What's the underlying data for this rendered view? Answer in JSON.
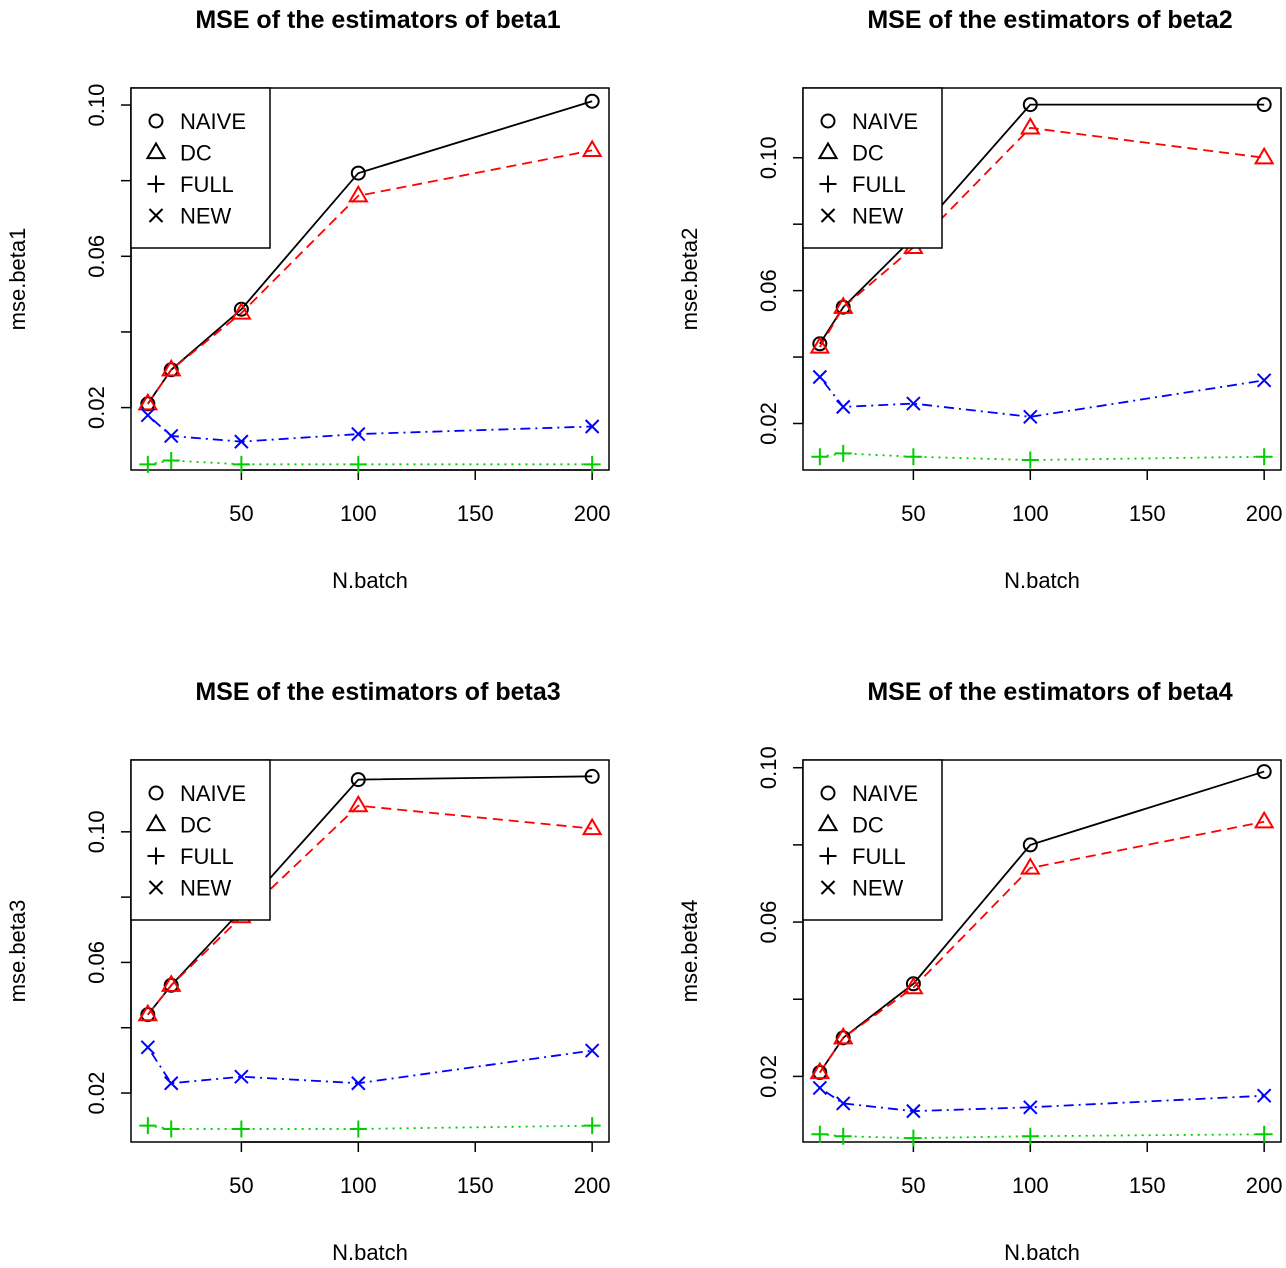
{
  "chart_data": [
    {
      "type": "line",
      "title": "MSE of the estimators of beta1",
      "xlabel": "N.batch",
      "ylabel": "mse.beta1",
      "x": [
        10,
        20,
        50,
        100,
        200
      ],
      "xlim": [
        2.8,
        207.2
      ],
      "ylim": [
        0.0035,
        0.1045
      ],
      "xticks": [
        50,
        100,
        150,
        200
      ],
      "yticks": [
        0.02,
        0.04,
        0.06,
        0.08,
        0.1
      ],
      "ytick_labels": [
        "0.02",
        "",
        "0.06",
        "",
        "0.10"
      ],
      "legend_position": "top-left",
      "series": [
        {
          "name": "NAIVE",
          "color": "#000000",
          "marker": "circle",
          "line": "solid",
          "values": [
            0.021,
            0.03,
            0.046,
            0.082,
            0.101
          ]
        },
        {
          "name": "DC",
          "color": "#ff0000",
          "marker": "triangle",
          "line": "dashed",
          "values": [
            0.021,
            0.03,
            0.045,
            0.076,
            0.088
          ]
        },
        {
          "name": "FULL",
          "color": "#00cd00",
          "marker": "plus",
          "line": "dotted",
          "values": [
            0.005,
            0.006,
            0.005,
            0.005,
            0.005
          ]
        },
        {
          "name": "NEW",
          "color": "#0000ff",
          "marker": "cross",
          "line": "dotdash",
          "values": [
            0.018,
            0.0125,
            0.011,
            0.013,
            0.015
          ]
        }
      ]
    },
    {
      "type": "line",
      "title": "MSE of the estimators of beta2",
      "xlabel": "N.batch",
      "ylabel": "mse.beta2",
      "x": [
        10,
        20,
        50,
        100,
        200
      ],
      "xlim": [
        2.8,
        207.2
      ],
      "ylim": [
        0.006,
        0.121
      ],
      "xticks": [
        50,
        100,
        150,
        200
      ],
      "yticks": [
        0.02,
        0.04,
        0.06,
        0.08,
        0.1
      ],
      "ytick_labels": [
        "0.02",
        "",
        "0.06",
        "",
        "0.10"
      ],
      "legend_position": "top-left",
      "series": [
        {
          "name": "NAIVE",
          "color": "#000000",
          "marker": "circle",
          "line": "solid",
          "values": [
            0.044,
            0.055,
            0.076,
            0.116,
            0.116
          ]
        },
        {
          "name": "DC",
          "color": "#ff0000",
          "marker": "triangle",
          "line": "dashed",
          "values": [
            0.043,
            0.055,
            0.073,
            0.109,
            0.1
          ]
        },
        {
          "name": "FULL",
          "color": "#00cd00",
          "marker": "plus",
          "line": "dotted",
          "values": [
            0.01,
            0.011,
            0.01,
            0.009,
            0.01
          ]
        },
        {
          "name": "NEW",
          "color": "#0000ff",
          "marker": "cross",
          "line": "dotdash",
          "values": [
            0.034,
            0.025,
            0.026,
            0.022,
            0.033
          ]
        }
      ]
    },
    {
      "type": "line",
      "title": "MSE of the estimators of beta3",
      "xlabel": "N.batch",
      "ylabel": "mse.beta3",
      "x": [
        10,
        20,
        50,
        100,
        200
      ],
      "xlim": [
        2.8,
        207.2
      ],
      "ylim": [
        0.005,
        0.122
      ],
      "xticks": [
        50,
        100,
        150,
        200
      ],
      "yticks": [
        0.02,
        0.04,
        0.06,
        0.08,
        0.1
      ],
      "ytick_labels": [
        "0.02",
        "",
        "0.06",
        "",
        "0.10"
      ],
      "legend_position": "top-left",
      "series": [
        {
          "name": "NAIVE",
          "color": "#000000",
          "marker": "circle",
          "line": "solid",
          "values": [
            0.044,
            0.053,
            0.076,
            0.116,
            0.117
          ]
        },
        {
          "name": "DC",
          "color": "#ff0000",
          "marker": "triangle",
          "line": "dashed",
          "values": [
            0.044,
            0.053,
            0.074,
            0.108,
            0.101
          ]
        },
        {
          "name": "FULL",
          "color": "#00cd00",
          "marker": "plus",
          "line": "dotted",
          "values": [
            0.01,
            0.009,
            0.009,
            0.009,
            0.01
          ]
        },
        {
          "name": "NEW",
          "color": "#0000ff",
          "marker": "cross",
          "line": "dotdash",
          "values": [
            0.034,
            0.023,
            0.025,
            0.023,
            0.033
          ]
        }
      ]
    },
    {
      "type": "line",
      "title": "MSE of the estimators of beta4",
      "xlabel": "N.batch",
      "ylabel": "mse.beta4",
      "x": [
        10,
        20,
        50,
        100,
        200
      ],
      "xlim": [
        2.8,
        207.2
      ],
      "ylim": [
        0.003,
        0.102
      ],
      "xticks": [
        50,
        100,
        150,
        200
      ],
      "yticks": [
        0.02,
        0.04,
        0.06,
        0.08,
        0.1
      ],
      "ytick_labels": [
        "0.02",
        "",
        "0.06",
        "",
        "0.10"
      ],
      "legend_position": "top-left",
      "series": [
        {
          "name": "NAIVE",
          "color": "#000000",
          "marker": "circle",
          "line": "solid",
          "values": [
            0.021,
            0.03,
            0.044,
            0.08,
            0.099
          ]
        },
        {
          "name": "DC",
          "color": "#ff0000",
          "marker": "triangle",
          "line": "dashed",
          "values": [
            0.021,
            0.03,
            0.043,
            0.074,
            0.086
          ]
        },
        {
          "name": "FULL",
          "color": "#00cd00",
          "marker": "plus",
          "line": "dotted",
          "values": [
            0.005,
            0.0045,
            0.004,
            0.0045,
            0.005
          ]
        },
        {
          "name": "NEW",
          "color": "#0000ff",
          "marker": "cross",
          "line": "dotdash",
          "values": [
            0.017,
            0.013,
            0.011,
            0.012,
            0.015
          ]
        }
      ]
    }
  ]
}
